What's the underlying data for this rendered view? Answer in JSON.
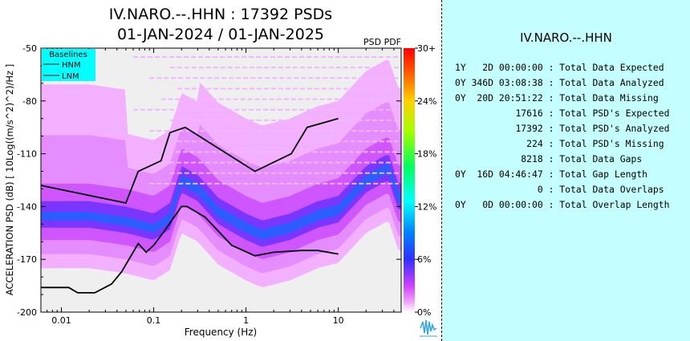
{
  "title": {
    "line1": "IV.NARO.--.HHN : 17392 PSDs",
    "line2": "01-JAN-2024 / 01-JAN-2025"
  },
  "colorbar_title": "PSD PDF",
  "legend": {
    "title": "Baselines",
    "items": [
      "HNM",
      "LNM"
    ],
    "background_color": "#00ffff"
  },
  "chart_data": {
    "type": "heatmap",
    "xlabel": "Frequency (Hz)",
    "ylabel": "ACCELERATION PSD (dB) [ 10Log((m/s^2)^2)/Hz ]",
    "x_scale": "log",
    "xlim": [
      0.006,
      48
    ],
    "ylim": [
      -200,
      -50
    ],
    "x_ticks": [
      0.01,
      0.1,
      1,
      10
    ],
    "x_tick_labels": [
      "0.01",
      "0.1",
      "1",
      "10"
    ],
    "y_ticks": [
      -50,
      -80,
      -110,
      -140,
      -170,
      -200
    ],
    "y_tick_labels": [
      "-50",
      "-80",
      "-110",
      "-140",
      "-170",
      "-200"
    ],
    "colorbar": {
      "ticks": [
        0,
        6,
        12,
        18,
        24,
        30
      ],
      "tick_labels": [
        "0%",
        "6%",
        "12%",
        "18%",
        "24%",
        "30+"
      ]
    },
    "series": [
      {
        "name": "HNM",
        "color": "#000000",
        "points": [
          [
            0.006,
            -128
          ],
          [
            0.05,
            -138
          ],
          [
            0.068,
            -120
          ],
          [
            0.12,
            -114
          ],
          [
            0.15,
            -98
          ],
          [
            0.22,
            -95
          ],
          [
            1.25,
            -120
          ],
          [
            3.1,
            -110
          ],
          [
            4.6,
            -95
          ],
          [
            10,
            -90
          ]
        ]
      },
      {
        "name": "LNM",
        "color": "#000000",
        "points": [
          [
            0.006,
            -186
          ],
          [
            0.0085,
            -186
          ],
          [
            0.012,
            -186
          ],
          [
            0.015,
            -189
          ],
          [
            0.023,
            -189
          ],
          [
            0.035,
            -184
          ],
          [
            0.045,
            -177
          ],
          [
            0.068,
            -161
          ],
          [
            0.083,
            -166
          ],
          [
            0.1,
            -162
          ],
          [
            0.13,
            -154
          ],
          [
            0.2,
            -140
          ],
          [
            0.23,
            -140
          ],
          [
            0.36,
            -146
          ],
          [
            0.7,
            -162
          ],
          [
            1.25,
            -168
          ],
          [
            2,
            -166
          ],
          [
            4,
            -165
          ],
          [
            6,
            -165
          ],
          [
            10,
            -167
          ]
        ]
      }
    ],
    "pdf_mode": {
      "description_points": [
        [
          0.006,
          -145
        ],
        [
          0.02,
          -145
        ],
        [
          0.05,
          -148
        ],
        [
          0.1,
          -152
        ],
        [
          0.15,
          -146
        ],
        [
          0.2,
          -125
        ],
        [
          0.3,
          -130
        ],
        [
          0.5,
          -143
        ],
        [
          1,
          -152
        ],
        [
          1.5,
          -156
        ],
        [
          3,
          -152
        ],
        [
          6,
          -145
        ],
        [
          10,
          -142
        ],
        [
          20,
          -125
        ],
        [
          35,
          -118
        ],
        [
          45,
          -135
        ]
      ]
    }
  },
  "stats": {
    "title": "IV.NARO.--.HHN",
    "rows": [
      {
        "value": "1Y   2D 00:00:00",
        "label": ": Total Data Expected"
      },
      {
        "value": "0Y 346D 03:08:38",
        "label": ": Total Data Analyzed"
      },
      {
        "value": "0Y  20D 20:51:22",
        "label": ": Total Data Missing"
      },
      {
        "value": "17616",
        "label": ": Total PSD's Expected"
      },
      {
        "value": "17392",
        "label": ": Total PSD's Analyzed"
      },
      {
        "value": "224",
        "label": ": Total PSD's Missing"
      },
      {
        "value": "8218",
        "label": ": Total Data Gaps"
      },
      {
        "value": "0Y  16D 04:46:47",
        "label": ": Total Gap Length"
      },
      {
        "value": "0",
        "label": ": Total Data Overlaps"
      },
      {
        "value": "0Y   0D 00:00:00",
        "label": ": Total Overlap Length"
      }
    ]
  }
}
